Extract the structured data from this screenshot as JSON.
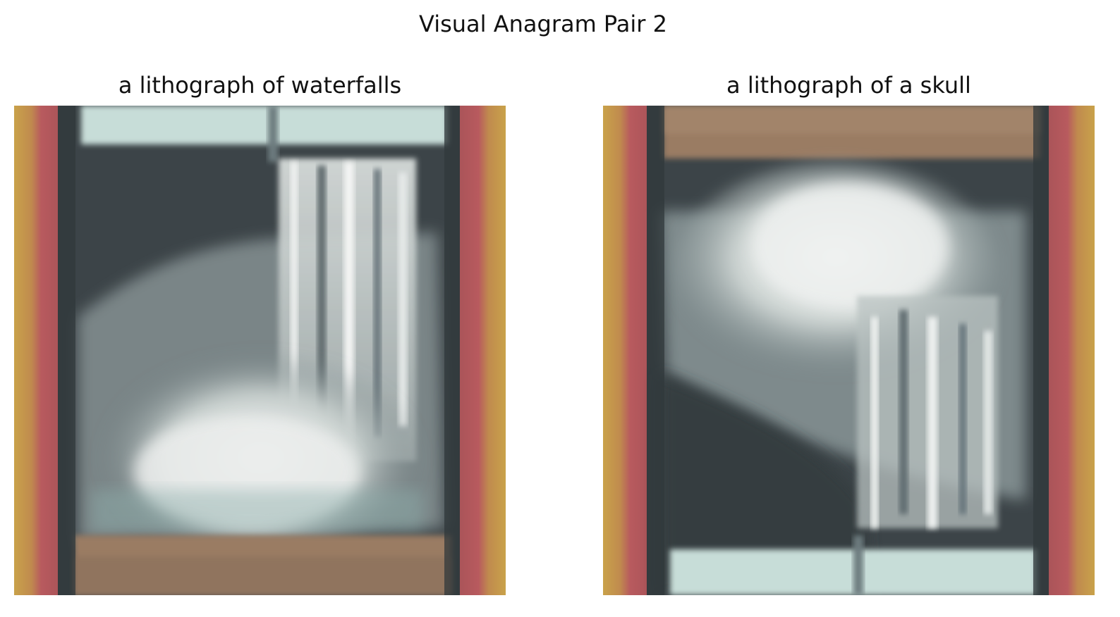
{
  "figure": {
    "title": "Visual Anagram Pair 2"
  },
  "panels": [
    {
      "caption": "a lithograph of waterfalls",
      "image": "waterfall-lithograph"
    },
    {
      "caption": "a lithograph of a skull",
      "image": "skull-lithograph"
    }
  ],
  "colors": {
    "frame_gold": "#c9a24a",
    "frame_red": "#b85a5e",
    "dark_slate": "#3c4448",
    "pale_teal": "#c7ddd8",
    "mist_gray": "#d9dcdb",
    "sepia_brown": "#9a7c64"
  }
}
